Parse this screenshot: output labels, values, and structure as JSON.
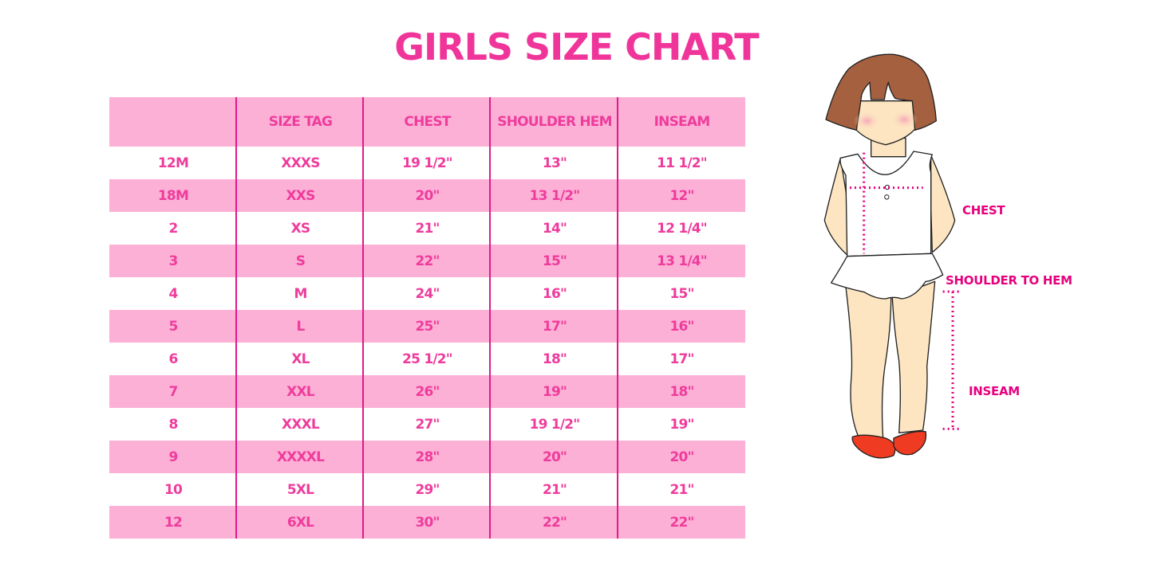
{
  "title": "GIRLS SIZE CHART",
  "table": {
    "headers": [
      "",
      "SIZE TAG",
      "CHEST",
      "SHOULDER HEM",
      "INSEAM"
    ],
    "rows": [
      [
        "12M",
        "XXXS",
        "19 1/2\"",
        "13\"",
        "11 1/2\""
      ],
      [
        "18M",
        "XXS",
        "20\"",
        "13 1/2\"",
        "12\""
      ],
      [
        "2",
        "XS",
        "21\"",
        "14\"",
        "12 1/4\""
      ],
      [
        "3",
        "S",
        "22\"",
        "15\"",
        "13 1/4\""
      ],
      [
        "4",
        "M",
        "24\"",
        "16\"",
        "15\""
      ],
      [
        "5",
        "L",
        "25\"",
        "17\"",
        "16\""
      ],
      [
        "6",
        "XL",
        "25 1/2\"",
        "18\"",
        "17\""
      ],
      [
        "7",
        "XXL",
        "26\"",
        "19\"",
        "18\""
      ],
      [
        "8",
        "XXXL",
        "27\"",
        "19 1/2\"",
        "19\""
      ],
      [
        "9",
        "XXXXL",
        "28\"",
        "20\"",
        "20\""
      ],
      [
        "10",
        "5XL",
        "29\"",
        "21\"",
        "21\""
      ],
      [
        "12",
        "6XL",
        "30\"",
        "22\"",
        "22\""
      ]
    ]
  },
  "figure": {
    "labels": {
      "chest": "CHEST",
      "shoulder_to_hem": "SHOULDER TO HEM",
      "inseam": "INSEAM"
    }
  },
  "colors": {
    "accent": "#f0359a",
    "row_pink": "#fdb0d6",
    "divider": "#e2188c",
    "measure": "#e6007e"
  }
}
